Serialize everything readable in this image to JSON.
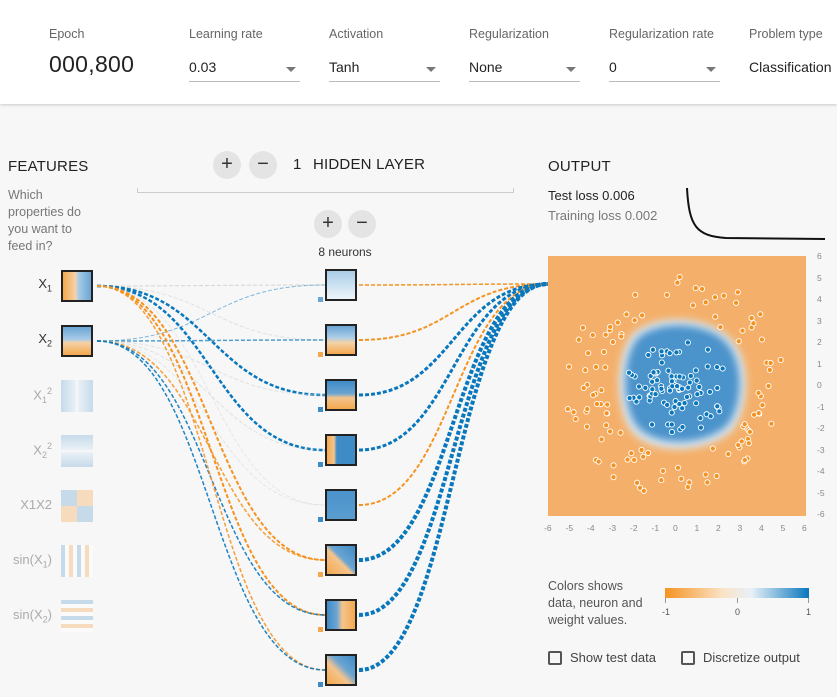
{
  "controls": {
    "epoch_label": "Epoch",
    "epoch_value": "000,800",
    "learning_rate_label": "Learning rate",
    "learning_rate_value": "0.03",
    "activation_label": "Activation",
    "activation_value": "Tanh",
    "regularization_label": "Regularization",
    "regularization_value": "None",
    "reg_rate_label": "Regularization rate",
    "reg_rate_value": "0",
    "problem_label": "Problem type",
    "problem_value": "Classification"
  },
  "features": {
    "heading": "FEATURES",
    "question": [
      "Which",
      "properties do",
      "you want to",
      "feed in?"
    ],
    "items": [
      {
        "base": "X",
        "sub": "1",
        "sup": "",
        "active": true
      },
      {
        "base": "X",
        "sub": "2",
        "sup": "",
        "active": true
      },
      {
        "base": "X",
        "sub": "1",
        "sup": "2",
        "active": false
      },
      {
        "base": "X",
        "sub": "2",
        "sup": "2",
        "active": false
      },
      {
        "base": "X1X2",
        "sub": "",
        "sup": "",
        "active": false
      },
      {
        "base": "sin(X",
        "sub": "1",
        "sup": "",
        "active": false
      },
      {
        "base": "sin(X",
        "sub": "2",
        "sup": "",
        "active": false
      }
    ]
  },
  "hidden": {
    "plus": "+",
    "minus": "−",
    "count": "1",
    "label": "HIDDEN LAYER",
    "neurons_label": "8 neurons"
  },
  "output": {
    "heading": "OUTPUT",
    "test_loss": "Test loss 0.006",
    "training_loss": "Training loss 0.002",
    "y_ticks": [
      "6",
      "5",
      "4",
      "3",
      "2",
      "1",
      "0",
      "-1",
      "-2",
      "-3",
      "-4",
      "-5",
      "-6"
    ],
    "x_ticks": [
      "-6",
      "-5",
      "-4",
      "-3",
      "-2",
      "-1",
      "0",
      "1",
      "2",
      "3",
      "4",
      "5",
      "6"
    ],
    "legend_text": [
      "Colors shows",
      "data, neuron and",
      "weight values."
    ],
    "legend_min": "-1",
    "legend_mid": "0",
    "legend_max": "1",
    "show_test_label": "Show test data",
    "discretize_label": "Discretize output"
  },
  "colors": {
    "orange": "#f59322",
    "blue": "#0877bd",
    "light_orange": "#f4b36c",
    "light_blue": "#7cb0d6"
  }
}
